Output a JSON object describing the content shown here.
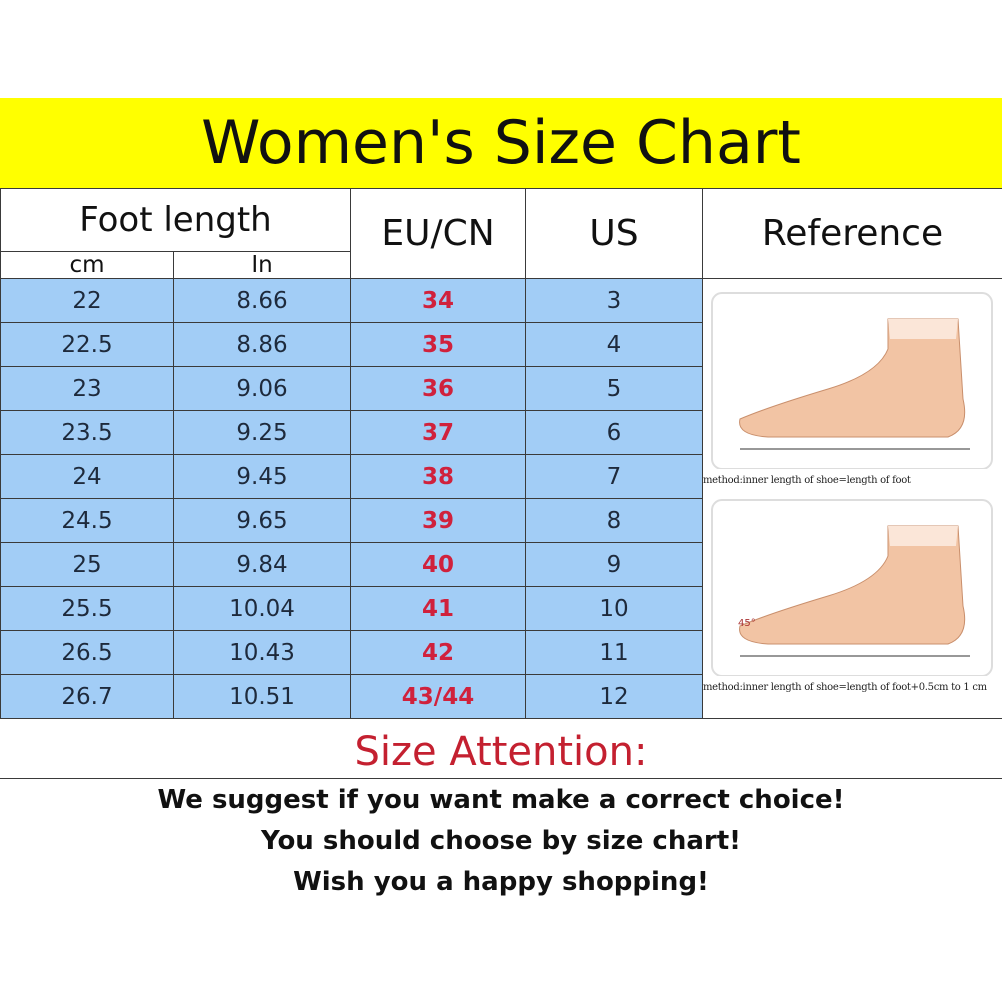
{
  "title": "Women's Size Chart",
  "headers": {
    "foot_length": "Foot length",
    "cm": "cm",
    "in": "In",
    "eu_cn": "EU/CN",
    "us": "US",
    "reference": "Reference"
  },
  "rows": [
    {
      "cm": "22",
      "in": "8.66",
      "eu": "34",
      "us": "3"
    },
    {
      "cm": "22.5",
      "in": "8.86",
      "eu": "35",
      "us": "4"
    },
    {
      "cm": "23",
      "in": "9.06",
      "eu": "36",
      "us": "5"
    },
    {
      "cm": "23.5",
      "in": "9.25",
      "eu": "37",
      "us": "6"
    },
    {
      "cm": "24",
      "in": "9.45",
      "eu": "38",
      "us": "7"
    },
    {
      "cm": "24.5",
      "in": "9.65",
      "eu": "39",
      "us": "8"
    },
    {
      "cm": "25",
      "in": "9.84",
      "eu": "40",
      "us": "9"
    },
    {
      "cm": "25.5",
      "in": "10.04",
      "eu": "41",
      "us": "10"
    },
    {
      "cm": "26.5",
      "in": "10.43",
      "eu": "42",
      "us": "11"
    },
    {
      "cm": "26.7",
      "in": "10.51",
      "eu": "43/44",
      "us": "12"
    }
  ],
  "reference": {
    "caption_1": "method:inner length of shoe=length of foot",
    "caption_2": "method:inner length of shoe=length of foot+0.5cm to 1 cm",
    "angle_label": "45°"
  },
  "attention": {
    "heading": "Size Attention:",
    "lines": [
      "We suggest if you want make a correct choice!",
      "You should choose by size chart!",
      "Wish you a happy shopping!"
    ]
  },
  "colors": {
    "title_bg": "#ffff00",
    "row_bg": "#a2cdf6",
    "eu_text": "#d0213c",
    "attention_text": "#c42030"
  }
}
